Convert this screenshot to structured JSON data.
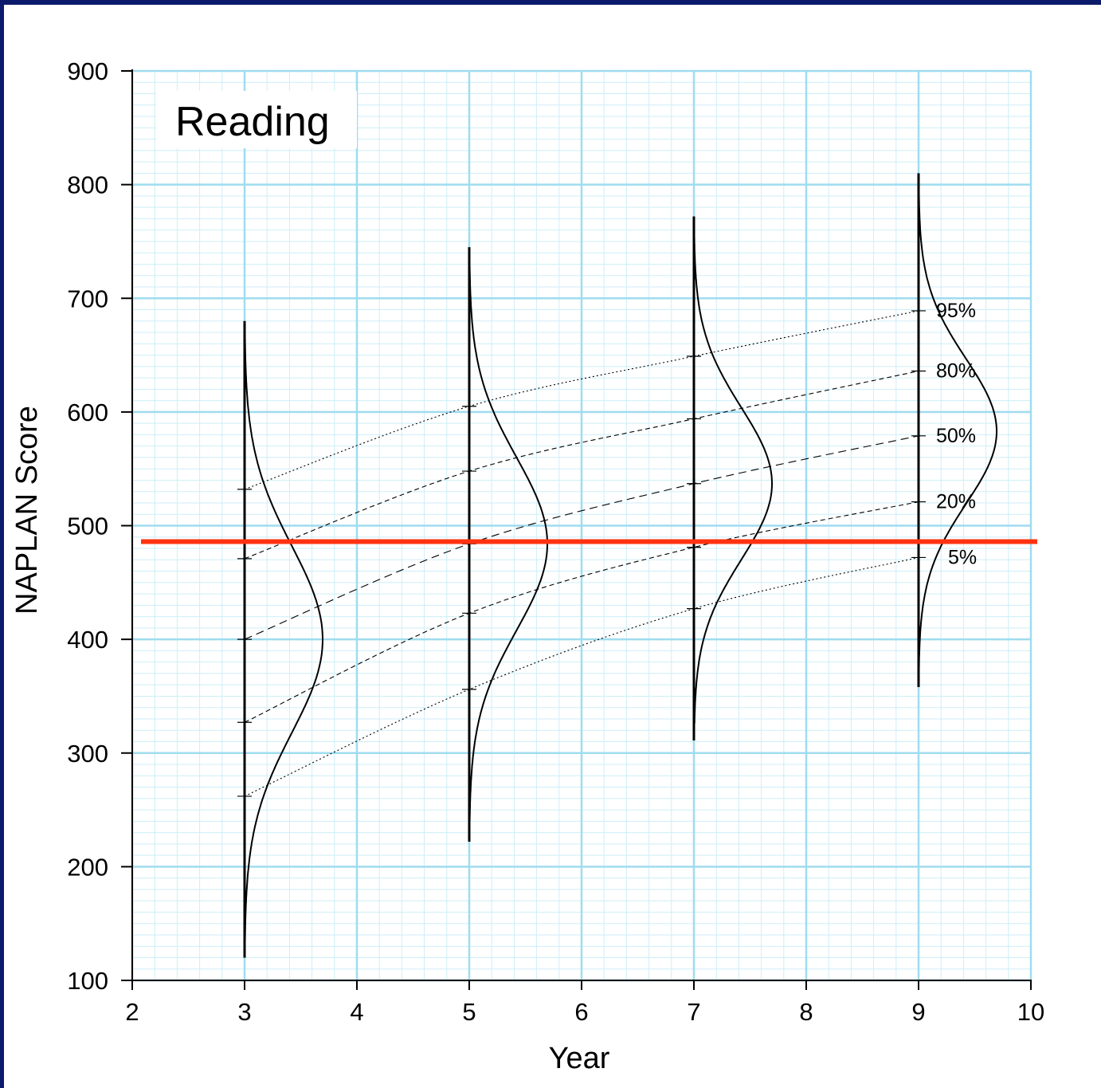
{
  "chart_data": {
    "type": "line",
    "title": "Reading",
    "xlabel": "Year",
    "ylabel": "NAPLAN Score",
    "xlim": [
      2,
      10
    ],
    "ylim": [
      100,
      900
    ],
    "xticks": [
      "2",
      "3",
      "4",
      "5",
      "6",
      "7",
      "8",
      "9",
      "10"
    ],
    "yticks": [
      "100",
      "200",
      "300",
      "400",
      "500",
      "600",
      "700",
      "800",
      "900"
    ],
    "grid": true,
    "colors": {
      "grid_major": "#9fdcef",
      "grid_minor": "#cdeef8",
      "reference_line": "#ff3311",
      "curves": "#000000",
      "frame": "#0c1a6b"
    },
    "x": [
      3,
      5,
      7,
      9
    ],
    "series": [
      {
        "name": "95%",
        "values": [
          532,
          605,
          649,
          689
        ]
      },
      {
        "name": "80%",
        "values": [
          471,
          548,
          594,
          636
        ]
      },
      {
        "name": "50%",
        "values": [
          400,
          484,
          537,
          579
        ]
      },
      {
        "name": "20%",
        "values": [
          327,
          423,
          481,
          521
        ]
      },
      {
        "name": "5%",
        "values": [
          262,
          356,
          427,
          472
        ]
      }
    ],
    "distributions": [
      {
        "year": 3,
        "mean": 400,
        "sd": 82,
        "range": [
          120,
          680
        ]
      },
      {
        "year": 5,
        "mean": 484,
        "sd": 76,
        "range": [
          222,
          745
        ]
      },
      {
        "year": 7,
        "mean": 537,
        "sd": 67,
        "range": [
          311,
          772
        ]
      },
      {
        "year": 9,
        "mean": 583,
        "sd": 64,
        "range": [
          358,
          810
        ]
      }
    ],
    "reference_line": {
      "y": 486
    }
  }
}
